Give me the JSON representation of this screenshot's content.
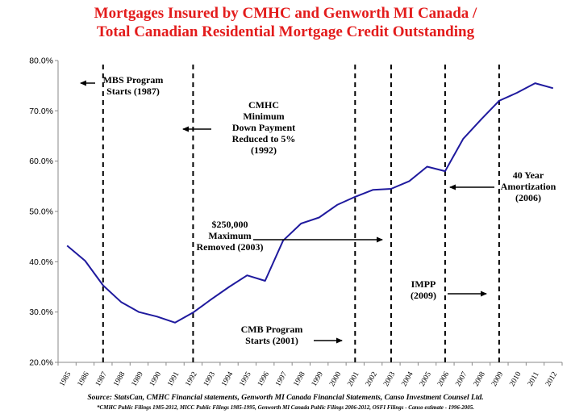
{
  "title_line1": "Mortgages Insured by CMHC and Genworth MI Canada /",
  "title_line2": "Total Canadian Residential Mortgage Credit Outstanding",
  "source_line1": "Source: StatsCan, CMHC Financial statements, Genworth MI Canada Financial Statements, Canso Investment Counsel Ltd.",
  "source_line2": "*CMHC Public Filings 1985-2012, MICC Public Filings 1985-1995, Genworth MI Canada Public Filings 2006-2012, OSFI Filings - Canso estimate - 1996-2005.",
  "colors": {
    "title": "#e31c1c",
    "line": "#1f1a9e",
    "text": "#000000"
  },
  "chart_data": {
    "type": "line",
    "title": "Mortgages Insured by CMHC and Genworth MI Canada / Total Canadian Residential Mortgage Credit Outstanding",
    "x": [
      "1985",
      "1986",
      "1987",
      "1988",
      "1989",
      "1990",
      "1991",
      "1992",
      "1993",
      "1994",
      "1995",
      "1996",
      "1997",
      "1998",
      "1999",
      "2000",
      "2001",
      "2002",
      "2003",
      "2004",
      "2005",
      "2006",
      "2007",
      "2008",
      "2009",
      "2010",
      "2011",
      "2012"
    ],
    "series": [
      {
        "values": [
          43.2,
          40.2,
          35.3,
          32.0,
          30.0,
          29.1,
          27.9,
          29.9,
          32.5,
          35.0,
          37.3,
          36.2,
          44.2,
          47.6,
          48.8,
          51.3,
          52.9,
          54.3,
          54.5,
          56.0,
          58.9,
          58.0,
          64.4,
          68.3,
          72.0,
          73.6,
          75.5,
          74.5
        ]
      }
    ],
    "y_ticks": [
      "20.0%",
      "30.0%",
      "40.0%",
      "50.0%",
      "60.0%",
      "70.0%",
      "80.0%"
    ],
    "ylim": [
      20,
      80
    ],
    "grid": false,
    "event_lines": [
      "1987",
      "1992",
      "2001",
      "2003",
      "2006",
      "2009"
    ],
    "annotations": [
      {
        "lines": [
          "MBS Program",
          "Starts (1987)"
        ],
        "arrow": "left",
        "target": "1987"
      },
      {
        "lines": [
          "CMHC",
          "Minimum",
          "Down Payment",
          "Reduced to 5%",
          "(1992)"
        ],
        "arrow": "left",
        "target": "1992"
      },
      {
        "lines": [
          "$250,000",
          "Maximum",
          "Removed (2003)"
        ],
        "arrow": "right",
        "target": "2003"
      },
      {
        "lines": [
          "CMB Program",
          "Starts (2001)"
        ],
        "arrow": "right",
        "target": "2001"
      },
      {
        "lines": [
          "40 Year",
          "Amortization",
          "(2006)"
        ],
        "arrow": "left",
        "target": "2006"
      },
      {
        "lines": [
          "IMPP",
          "(2009)"
        ],
        "arrow": "right",
        "target": "2009"
      }
    ]
  }
}
